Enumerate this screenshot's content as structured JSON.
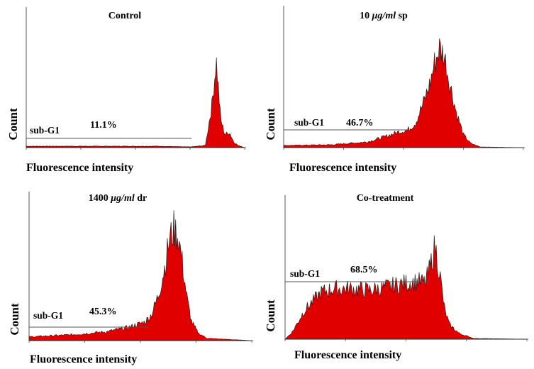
{
  "chart_data": [
    {
      "type": "area",
      "title": "Control",
      "xlabel": "Fluorescence intensity",
      "ylabel": "Count",
      "gate_label": "sub-G1",
      "sub_g1_percent": "11.1%",
      "x": [
        0,
        20,
        40,
        60,
        75,
        82,
        85,
        87,
        89,
        91,
        93,
        95,
        97,
        100
      ],
      "values": [
        2,
        2,
        2,
        2,
        1,
        3,
        60,
        125,
        40,
        18,
        22,
        8,
        3,
        0
      ],
      "ylim": [
        0,
        200
      ]
    },
    {
      "type": "area",
      "title_parts": [
        "10 ",
        "μg/ml",
        " sp"
      ],
      "xlabel": "Fluorescence intensity",
      "ylabel": "Count",
      "gate_label": "sub-G1",
      "sub_g1_percent": "46.7%",
      "x": [
        0,
        20,
        35,
        42,
        48,
        52,
        55,
        58,
        61,
        63,
        65,
        67,
        69,
        72,
        75,
        78,
        82,
        100
      ],
      "values": [
        3,
        4,
        8,
        15,
        22,
        25,
        35,
        60,
        90,
        120,
        140,
        130,
        95,
        50,
        18,
        6,
        1,
        0
      ],
      "ylim": [
        0,
        200
      ]
    },
    {
      "type": "area",
      "title_parts": [
        "1400 ",
        "μg/ml",
        " dr"
      ],
      "xlabel": "Fluorescence intensity",
      "ylabel": "Count",
      "gate_label": "sub-G1",
      "sub_g1_percent": "45.3%",
      "x": [
        0,
        20,
        35,
        45,
        52,
        55,
        58,
        61,
        63,
        65,
        67,
        69,
        71,
        73,
        76,
        80,
        100
      ],
      "values": [
        5,
        8,
        12,
        18,
        25,
        35,
        60,
        100,
        135,
        150,
        140,
        100,
        55,
        25,
        10,
        3,
        0
      ],
      "ylim": [
        0,
        200
      ]
    },
    {
      "type": "area",
      "title": "Co-treatment",
      "xlabel": "Fluorescence intensity",
      "ylabel": "Count",
      "gate_label": "sub-G1",
      "sub_g1_percent": "68.5%",
      "x": [
        0,
        3,
        8,
        15,
        20,
        28,
        35,
        42,
        50,
        55,
        58,
        60,
        62,
        64,
        66,
        68,
        72,
        78,
        100
      ],
      "values": [
        0,
        10,
        40,
        65,
        70,
        70,
        68,
        72,
        78,
        80,
        78,
        100,
        130,
        90,
        40,
        20,
        8,
        1,
        0
      ],
      "ylim": [
        0,
        200
      ]
    }
  ]
}
